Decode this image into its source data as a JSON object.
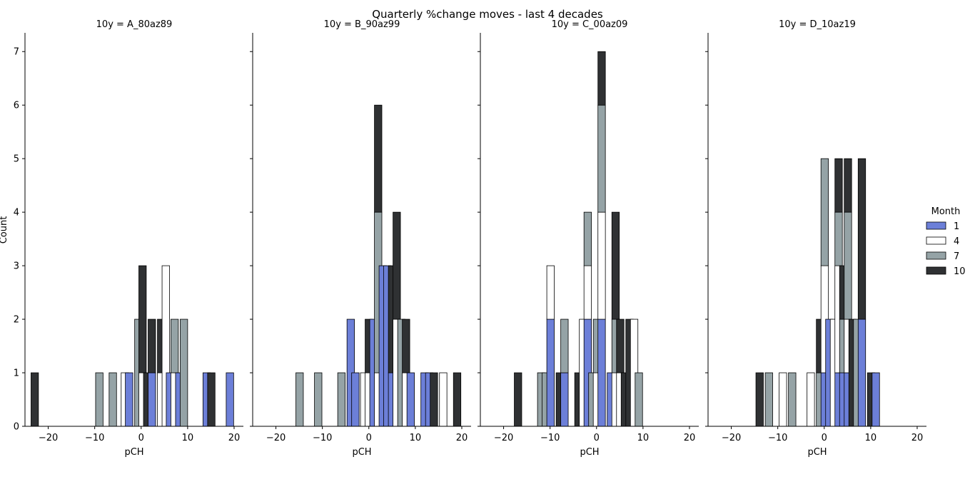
{
  "chart_data": {
    "type": "bar",
    "title": "Quarterly %change moves - last 4 decades",
    "xlabel": "pCH",
    "ylabel": "Count",
    "xlim": [
      -25,
      22
    ],
    "ylim": [
      0,
      7.35
    ],
    "x_ticks": [
      -20,
      -10,
      0,
      10,
      20
    ],
    "y_ticks": [
      0,
      1,
      2,
      3,
      4,
      5,
      6,
      7
    ],
    "bin_width": 1.6,
    "stacked": true,
    "grid": false,
    "legend": {
      "title": "Month",
      "placement": "right",
      "entries": [
        {
          "label": "1",
          "color": "#6c7fd8"
        },
        {
          "label": "4",
          "color": "#ffffff"
        },
        {
          "label": "7",
          "color": "#95a3a6"
        },
        {
          "label": "10",
          "color": "#2f3133"
        }
      ]
    },
    "panels": [
      {
        "title": "10y = A_80az89",
        "bins": [
          {
            "x": -22.9,
            "counts": [
              0,
              0,
              0,
              1
            ]
          },
          {
            "x": -9.0,
            "counts": [
              0,
              0,
              1,
              0
            ]
          },
          {
            "x": -6.1,
            "counts": [
              0,
              0,
              1,
              0
            ]
          },
          {
            "x": -3.5,
            "counts": [
              0,
              1,
              0,
              0
            ]
          },
          {
            "x": -2.6,
            "counts": [
              1,
              0,
              0,
              0
            ]
          },
          {
            "x": -0.6,
            "counts": [
              0,
              0,
              2,
              0
            ]
          },
          {
            "x": 0.3,
            "counts": [
              0,
              1,
              0,
              2
            ]
          },
          {
            "x": 1.3,
            "counts": [
              0,
              0,
              0,
              1
            ]
          },
          {
            "x": 2.3,
            "counts": [
              1,
              0,
              0,
              1
            ]
          },
          {
            "x": 4.3,
            "counts": [
              0,
              1,
              0,
              1
            ]
          },
          {
            "x": 5.3,
            "counts": [
              0,
              3,
              0,
              0
            ]
          },
          {
            "x": 6.2,
            "counts": [
              1,
              0,
              0,
              0
            ]
          },
          {
            "x": 7.2,
            "counts": [
              0,
              1,
              1,
              0
            ]
          },
          {
            "x": 8.2,
            "counts": [
              1,
              0,
              0,
              0
            ]
          },
          {
            "x": 9.2,
            "counts": [
              0,
              0,
              2,
              0
            ]
          },
          {
            "x": 14.1,
            "counts": [
              1,
              0,
              0,
              0
            ]
          },
          {
            "x": 15.1,
            "counts": [
              0,
              0,
              0,
              1
            ]
          },
          {
            "x": 19.1,
            "counts": [
              1,
              0,
              0,
              0
            ]
          }
        ]
      },
      {
        "title": "10y = B_90az99",
        "bins": [
          {
            "x": -14.9,
            "counts": [
              0,
              0,
              1,
              0
            ]
          },
          {
            "x": -10.9,
            "counts": [
              0,
              0,
              1,
              0
            ]
          },
          {
            "x": -5.9,
            "counts": [
              0,
              0,
              1,
              0
            ]
          },
          {
            "x": -3.9,
            "counts": [
              2,
              0,
              0,
              0
            ]
          },
          {
            "x": -2.9,
            "counts": [
              1,
              0,
              0,
              0
            ]
          },
          {
            "x": -1.0,
            "counts": [
              0,
              1,
              0,
              0
            ]
          },
          {
            "x": 0.0,
            "counts": [
              0,
              1,
              0,
              1
            ]
          },
          {
            "x": 1.0,
            "counts": [
              2,
              0,
              0,
              0
            ]
          },
          {
            "x": 2.0,
            "counts": [
              0,
              1,
              3,
              2
            ]
          },
          {
            "x": 3.0,
            "counts": [
              3,
              0,
              0,
              0
            ]
          },
          {
            "x": 4.0,
            "counts": [
              3,
              0,
              0,
              0
            ]
          },
          {
            "x": 5.0,
            "counts": [
              1,
              0,
              0,
              2
            ]
          },
          {
            "x": 6.0,
            "counts": [
              0,
              2,
              0,
              2
            ]
          },
          {
            "x": 7.0,
            "counts": [
              0,
              0,
              2,
              0
            ]
          },
          {
            "x": 8.0,
            "counts": [
              0,
              1,
              0,
              1
            ]
          },
          {
            "x": 9.0,
            "counts": [
              1,
              0,
              0,
              0
            ]
          },
          {
            "x": 12.0,
            "counts": [
              1,
              0,
              0,
              0
            ]
          },
          {
            "x": 13.0,
            "counts": [
              1,
              0,
              0,
              0
            ]
          },
          {
            "x": 14.0,
            "counts": [
              0,
              0,
              0,
              1
            ]
          },
          {
            "x": 16.0,
            "counts": [
              0,
              1,
              0,
              0
            ]
          },
          {
            "x": 19.0,
            "counts": [
              0,
              0,
              0,
              1
            ]
          }
        ]
      },
      {
        "title": "10y = C_00az09",
        "bins": [
          {
            "x": -16.9,
            "counts": [
              0,
              0,
              0,
              1
            ]
          },
          {
            "x": -11.9,
            "counts": [
              0,
              0,
              1,
              0
            ]
          },
          {
            "x": -10.9,
            "counts": [
              0,
              0,
              1,
              0
            ]
          },
          {
            "x": -9.9,
            "counts": [
              2,
              1,
              0,
              0
            ]
          },
          {
            "x": -7.9,
            "counts": [
              0,
              0,
              0,
              1
            ]
          },
          {
            "x": -6.9,
            "counts": [
              1,
              0,
              1,
              0
            ]
          },
          {
            "x": -3.9,
            "counts": [
              0,
              0,
              0,
              1
            ]
          },
          {
            "x": -2.9,
            "counts": [
              0,
              2,
              0,
              0
            ]
          },
          {
            "x": -1.9,
            "counts": [
              2,
              1,
              1,
              0
            ]
          },
          {
            "x": -0.9,
            "counts": [
              0,
              0,
              1,
              0
            ]
          },
          {
            "x": 0.1,
            "counts": [
              0,
              1,
              1,
              0
            ]
          },
          {
            "x": 1.1,
            "counts": [
              2,
              2,
              2,
              1
            ]
          },
          {
            "x": 3.1,
            "counts": [
              1,
              0,
              0,
              0
            ]
          },
          {
            "x": 4.1,
            "counts": [
              0,
              1,
              1,
              2
            ]
          },
          {
            "x": 5.1,
            "counts": [
              0,
              1,
              0,
              1
            ]
          },
          {
            "x": 6.1,
            "counts": [
              0,
              0,
              0,
              1
            ]
          },
          {
            "x": 7.1,
            "counts": [
              0,
              0,
              0,
              2
            ]
          },
          {
            "x": 8.1,
            "counts": [
              0,
              2,
              0,
              0
            ]
          },
          {
            "x": 9.1,
            "counts": [
              0,
              0,
              1,
              0
            ]
          }
        ]
      },
      {
        "title": "10y = D_10az19",
        "bins": [
          {
            "x": -13.9,
            "counts": [
              0,
              0,
              0,
              1
            ]
          },
          {
            "x": -11.9,
            "counts": [
              0,
              0,
              1,
              0
            ]
          },
          {
            "x": -8.9,
            "counts": [
              0,
              1,
              0,
              0
            ]
          },
          {
            "x": -6.9,
            "counts": [
              0,
              0,
              1,
              0
            ]
          },
          {
            "x": -2.9,
            "counts": [
              0,
              1,
              0,
              0
            ]
          },
          {
            "x": -0.9,
            "counts": [
              0,
              0,
              1,
              1
            ]
          },
          {
            "x": 0.1,
            "counts": [
              1,
              2,
              2,
              0
            ]
          },
          {
            "x": 1.1,
            "counts": [
              2,
              0,
              0,
              0
            ]
          },
          {
            "x": 2.1,
            "counts": [
              0,
              2,
              0,
              0
            ]
          },
          {
            "x": 3.1,
            "counts": [
              1,
              2,
              1,
              1
            ]
          },
          {
            "x": 4.1,
            "counts": [
              1,
              0,
              1,
              1
            ]
          },
          {
            "x": 5.1,
            "counts": [
              1,
              1,
              2,
              1
            ]
          },
          {
            "x": 6.1,
            "counts": [
              0,
              0,
              0,
              2
            ]
          },
          {
            "x": 7.1,
            "counts": [
              0,
              0,
              2,
              0
            ]
          },
          {
            "x": 8.1,
            "counts": [
              2,
              0,
              0,
              3
            ]
          },
          {
            "x": 10.1,
            "counts": [
              0,
              0,
              0,
              1
            ]
          },
          {
            "x": 11.1,
            "counts": [
              1,
              0,
              0,
              0
            ]
          }
        ]
      }
    ]
  }
}
